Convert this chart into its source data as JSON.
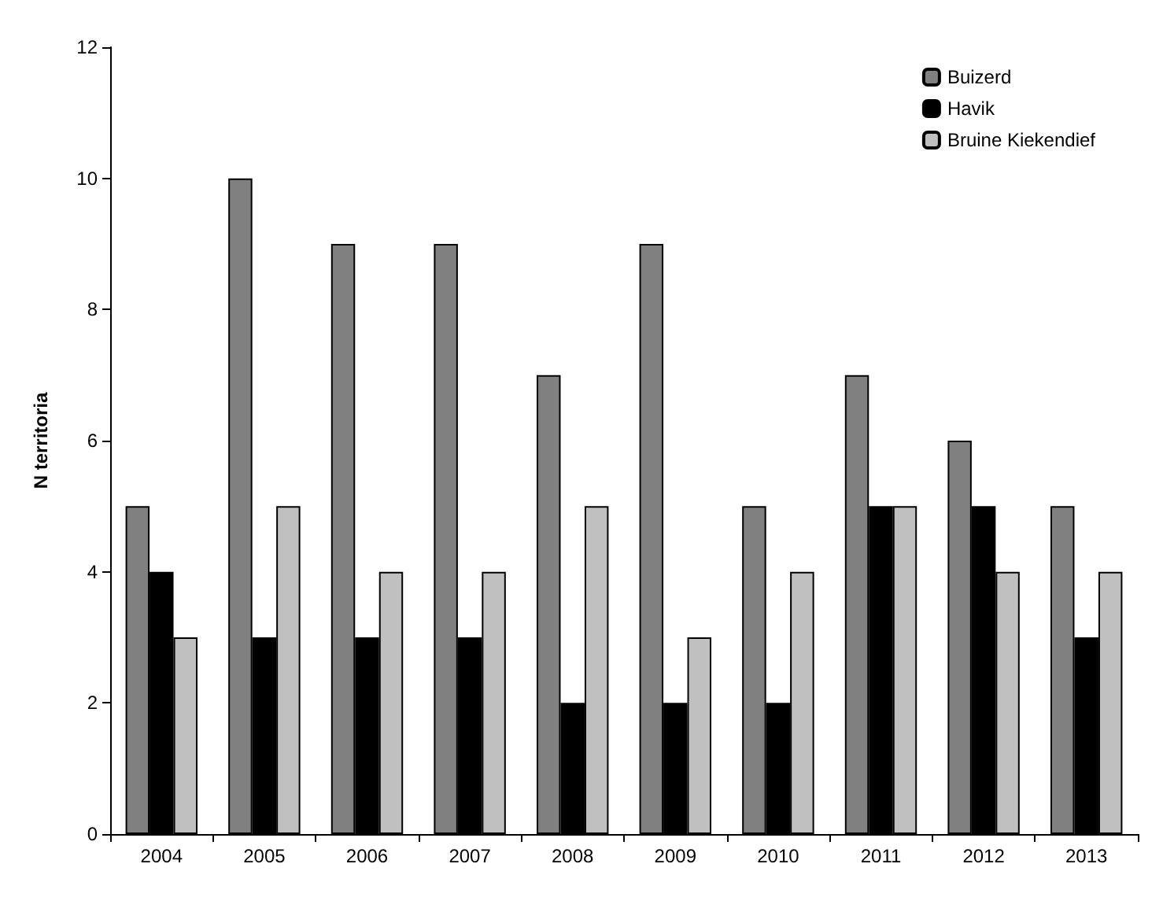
{
  "chart_data": {
    "type": "bar",
    "ylabel": "N territoria",
    "categories": [
      "2004",
      "2005",
      "2006",
      "2007",
      "2008",
      "2009",
      "2010",
      "2011",
      "2012",
      "2013"
    ],
    "series": [
      {
        "name": "Buizerd",
        "color": "#808080",
        "values": [
          5,
          10,
          9,
          9,
          7,
          9,
          5,
          7,
          6,
          5
        ]
      },
      {
        "name": "Havik",
        "color": "#000000",
        "values": [
          4,
          3,
          3,
          3,
          2,
          2,
          2,
          5,
          5,
          3
        ]
      },
      {
        "name": "Bruine Kiekendief",
        "color": "#c0c0c0",
        "values": [
          3,
          5,
          4,
          4,
          5,
          3,
          4,
          5,
          4,
          4
        ]
      }
    ],
    "ylim": [
      0,
      12
    ],
    "yticks": [
      0,
      2,
      4,
      6,
      8,
      10,
      12
    ],
    "grid": false,
    "legend": "top right"
  }
}
